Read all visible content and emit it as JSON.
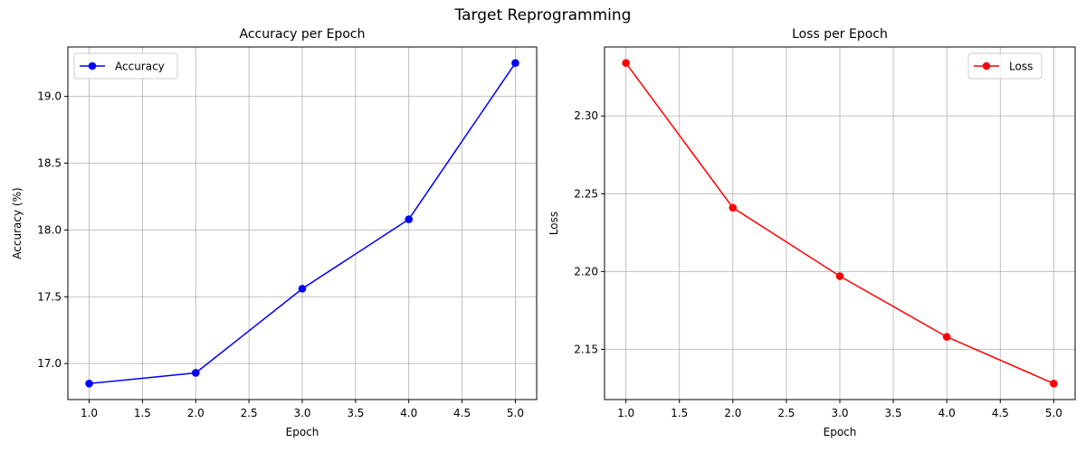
{
  "figure": {
    "suptitle": "Target Reprogramming"
  },
  "chart_data": [
    {
      "type": "line",
      "title": "Accuracy per Epoch",
      "xlabel": "Epoch",
      "ylabel": "Accuracy (%)",
      "x": [
        1.0,
        2.0,
        3.0,
        4.0,
        5.0
      ],
      "series": [
        {
          "name": "Accuracy",
          "values": [
            16.85,
            16.93,
            17.56,
            18.08,
            19.25
          ],
          "color": "#0000ff",
          "marker": "circle"
        }
      ],
      "xlim": [
        0.8,
        5.2
      ],
      "ylim": [
        16.73,
        19.37
      ],
      "xticks": [
        1.0,
        1.5,
        2.0,
        2.5,
        3.0,
        3.5,
        4.0,
        4.5,
        5.0
      ],
      "xtick_labels": [
        "1.0",
        "1.5",
        "2.0",
        "2.5",
        "3.0",
        "3.5",
        "4.0",
        "4.5",
        "5.0"
      ],
      "yticks": [
        17.0,
        17.5,
        18.0,
        18.5,
        19.0
      ],
      "ytick_labels": [
        "17.0",
        "17.5",
        "18.0",
        "18.5",
        "19.0"
      ],
      "grid": true,
      "legend_position": "top-left"
    },
    {
      "type": "line",
      "title": "Loss per Epoch",
      "xlabel": "Epoch",
      "ylabel": "Loss",
      "x": [
        1.0,
        2.0,
        3.0,
        4.0,
        5.0
      ],
      "series": [
        {
          "name": "Loss",
          "values": [
            2.334,
            2.241,
            2.197,
            2.158,
            2.128
          ],
          "color": "#ff0000",
          "marker": "circle"
        }
      ],
      "xlim": [
        0.8,
        5.2
      ],
      "ylim": [
        2.1177,
        2.3443
      ],
      "xticks": [
        1.0,
        1.5,
        2.0,
        2.5,
        3.0,
        3.5,
        4.0,
        4.5,
        5.0
      ],
      "xtick_labels": [
        "1.0",
        "1.5",
        "2.0",
        "2.5",
        "3.0",
        "3.5",
        "4.0",
        "4.5",
        "5.0"
      ],
      "yticks": [
        2.15,
        2.2,
        2.25,
        2.3
      ],
      "ytick_labels": [
        "2.15",
        "2.20",
        "2.25",
        "2.30"
      ],
      "grid": true,
      "legend_position": "top-right"
    }
  ]
}
